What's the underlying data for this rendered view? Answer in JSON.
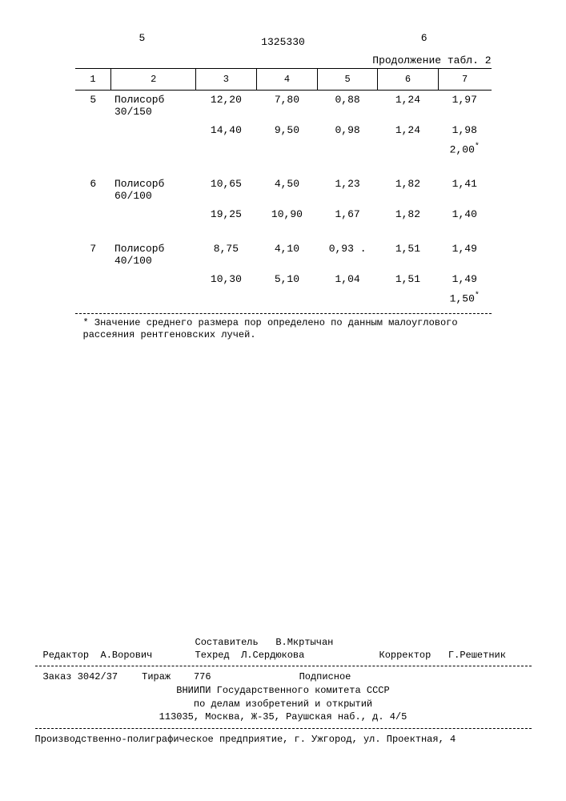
{
  "header": {
    "page_left": "5",
    "page_right": "6",
    "doc_number": "1325330",
    "continuation": "Продолжение табл. 2"
  },
  "table": {
    "columns": [
      "1",
      "2",
      "3",
      "4",
      "5",
      "6",
      "7"
    ],
    "groups": [
      {
        "index": "5",
        "name_line1": "Полисорб",
        "name_line2": "30/150",
        "rows": [
          [
            "12,20",
            "7,80",
            "0,88",
            "1,24",
            "1,97"
          ],
          [
            "14,40",
            "9,50",
            "0,98",
            "1,24",
            "1,98"
          ],
          [
            "",
            "",
            "",
            "",
            "2,00*"
          ]
        ]
      },
      {
        "index": "6",
        "name_line1": "Полисорб",
        "name_line2": "60/100",
        "rows": [
          [
            "10,65",
            "4,50",
            "1,23",
            "1,82",
            "1,41"
          ],
          [
            "19,25",
            "10,90",
            "1,67",
            "1,82",
            "1,40"
          ]
        ]
      },
      {
        "index": "7",
        "name_line1": "Полисорб",
        "name_line2": "40/100",
        "rows": [
          [
            "8,75",
            "4,10",
            "0,93 .",
            "1,51",
            "1,49"
          ],
          [
            "10,30",
            "5,10",
            "1,04",
            "1,51",
            "1,49"
          ],
          [
            "",
            "",
            "",
            "",
            "1,50*"
          ]
        ]
      }
    ]
  },
  "footnote": "* Значение среднего размера пор определено по данным малоуглового рассеяния рентгеновских лучей.",
  "credits": {
    "editor_label": "Редактор",
    "editor": "А.Ворович",
    "compiler_label": "Составитель",
    "compiler": "В.Мкртычан",
    "tech_label": "Техред",
    "tech": "Л.Сердюкова",
    "corrector_label": "Корректор",
    "corrector": "Г.Решетник"
  },
  "pub": {
    "order": "Заказ 3042/37",
    "tirage_label": "Тираж",
    "tirage": "776",
    "subscription": "Подписное",
    "org1": "ВНИИПИ Государственного комитета СССР",
    "org2": "по делам изобретений и открытий",
    "addr": "113035, Москва, Ж-35, Раушская наб., д. 4/5",
    "producer": "Производственно-полиграфическое предприятие, г. Ужгород, ул. Проектная, 4"
  }
}
